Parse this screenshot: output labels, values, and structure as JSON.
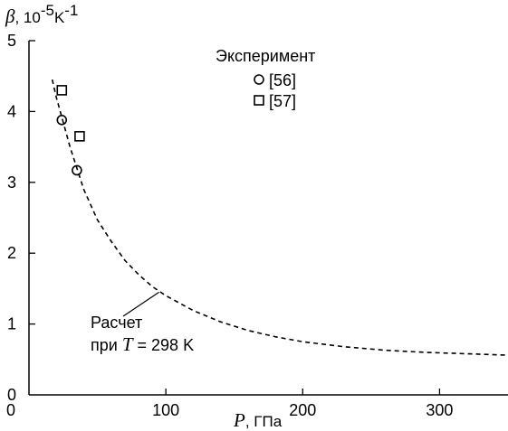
{
  "chart_data": {
    "type": "scatter",
    "title": "",
    "xlabel": {
      "symbol": "P",
      "unit": ", ГПа"
    },
    "ylabel": {
      "symbol": "β",
      "prefix": ", 10",
      "exp": "-5",
      "unit": "K",
      "unit_exp": "-1"
    },
    "xlim": [
      0,
      350
    ],
    "ylim": [
      0,
      5
    ],
    "x_ticks": [
      0,
      100,
      200,
      300
    ],
    "y_ticks": [
      0,
      1,
      2,
      3,
      4,
      5
    ],
    "grid": false,
    "legend": {
      "title": "Эксперимент",
      "placement": "top-center",
      "entries": [
        {
          "label": "[56]",
          "marker": "circle"
        },
        {
          "label": "[57]",
          "marker": "square"
        }
      ]
    },
    "series": [
      {
        "name": "[56]",
        "kind": "scatter",
        "marker": "circle",
        "points": [
          {
            "x": 24,
            "y": 3.88
          },
          {
            "x": 35,
            "y": 3.17
          }
        ]
      },
      {
        "name": "[57]",
        "kind": "scatter",
        "marker": "square",
        "points": [
          {
            "x": 24,
            "y": 4.3
          },
          {
            "x": 37,
            "y": 3.65
          }
        ]
      },
      {
        "name": "Расчет при T = 298 K",
        "kind": "line",
        "style": "dashed",
        "points": [
          {
            "x": 17,
            "y": 4.45
          },
          {
            "x": 20,
            "y": 4.2
          },
          {
            "x": 25,
            "y": 3.85
          },
          {
            "x": 30,
            "y": 3.5
          },
          {
            "x": 40,
            "y": 2.9
          },
          {
            "x": 50,
            "y": 2.47
          },
          {
            "x": 60,
            "y": 2.17
          },
          {
            "x": 70,
            "y": 1.9
          },
          {
            "x": 80,
            "y": 1.7
          },
          {
            "x": 90,
            "y": 1.53
          },
          {
            "x": 100,
            "y": 1.4
          },
          {
            "x": 120,
            "y": 1.19
          },
          {
            "x": 140,
            "y": 1.03
          },
          {
            "x": 160,
            "y": 0.91
          },
          {
            "x": 180,
            "y": 0.82
          },
          {
            "x": 200,
            "y": 0.75
          },
          {
            "x": 230,
            "y": 0.68
          },
          {
            "x": 260,
            "y": 0.63
          },
          {
            "x": 290,
            "y": 0.6
          },
          {
            "x": 320,
            "y": 0.58
          },
          {
            "x": 350,
            "y": 0.56
          }
        ]
      }
    ],
    "annotation": {
      "line1": "Расчет",
      "line2_prefix": "при ",
      "line2_symbol": "T",
      "line2_suffix": " = 298 K",
      "points_to": {
        "x": 95,
        "y": 1.45
      }
    }
  }
}
